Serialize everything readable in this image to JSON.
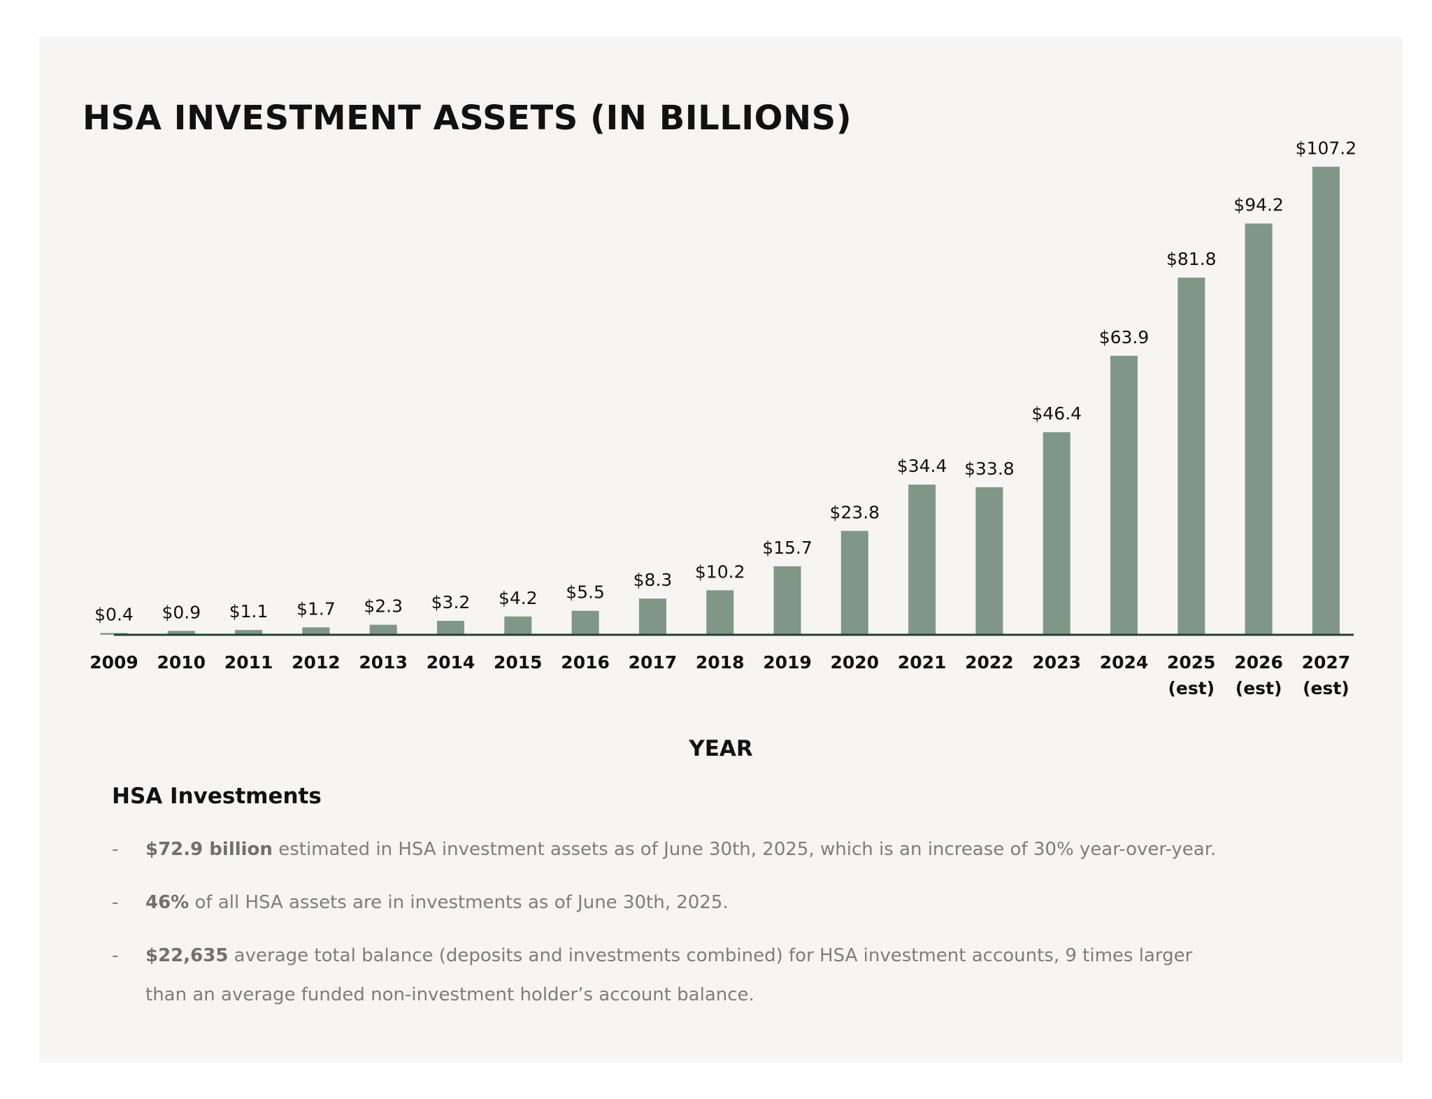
{
  "colors": {
    "bar": "#809788",
    "axis": "#27402f",
    "text": "#111111",
    "muted": "#7d7d7d",
    "card": "#f7f5f3"
  },
  "notes": {
    "heading": "HSA Investments",
    "dash": "-",
    "bullets": [
      {
        "bold": "$72.9 billion",
        "text": " estimated in HSA investment assets as of June 30th, 2025, which is an increase of 30% year-over-year."
      },
      {
        "bold": "46%",
        "text": "  of all HSA assets are in investments as of June 30th, 2025."
      },
      {
        "bold": "$22,635",
        "text": " average total balance (deposits and investments combined) for HSA investment accounts, 9 times larger than an average funded non-investment holder’s account balance."
      }
    ]
  },
  "chart_data": {
    "type": "bar",
    "title": "HSA INVESTMENT ASSETS (IN BILLIONS)",
    "xlabel": "YEAR",
    "ylabel": "",
    "ylim": [
      0,
      110
    ],
    "grid": false,
    "categories": [
      "2009",
      "2010",
      "2011",
      "2012",
      "2013",
      "2014",
      "2015",
      "2016",
      "2017",
      "2018",
      "2019",
      "2020",
      "2021",
      "2022",
      "2023",
      "2024",
      "2025\n(est)",
      "2026\n(est)",
      "2027\n(est)"
    ],
    "values": [
      0.4,
      0.9,
      1.1,
      1.7,
      2.3,
      3.2,
      4.2,
      5.5,
      8.3,
      10.2,
      15.7,
      23.8,
      34.4,
      33.8,
      46.4,
      63.9,
      81.8,
      94.2,
      107.2
    ],
    "labels": [
      "$0.4",
      "$0.9",
      "$1.1",
      "$1.7",
      "$2.3",
      "$3.2",
      "$4.2",
      "$5.5",
      "$8.3",
      "$10.2",
      "$15.7",
      "$23.8",
      "$34.4",
      "$33.8",
      "$46.4",
      "$63.9",
      "$81.8",
      "$94.2",
      "$107.2"
    ]
  }
}
